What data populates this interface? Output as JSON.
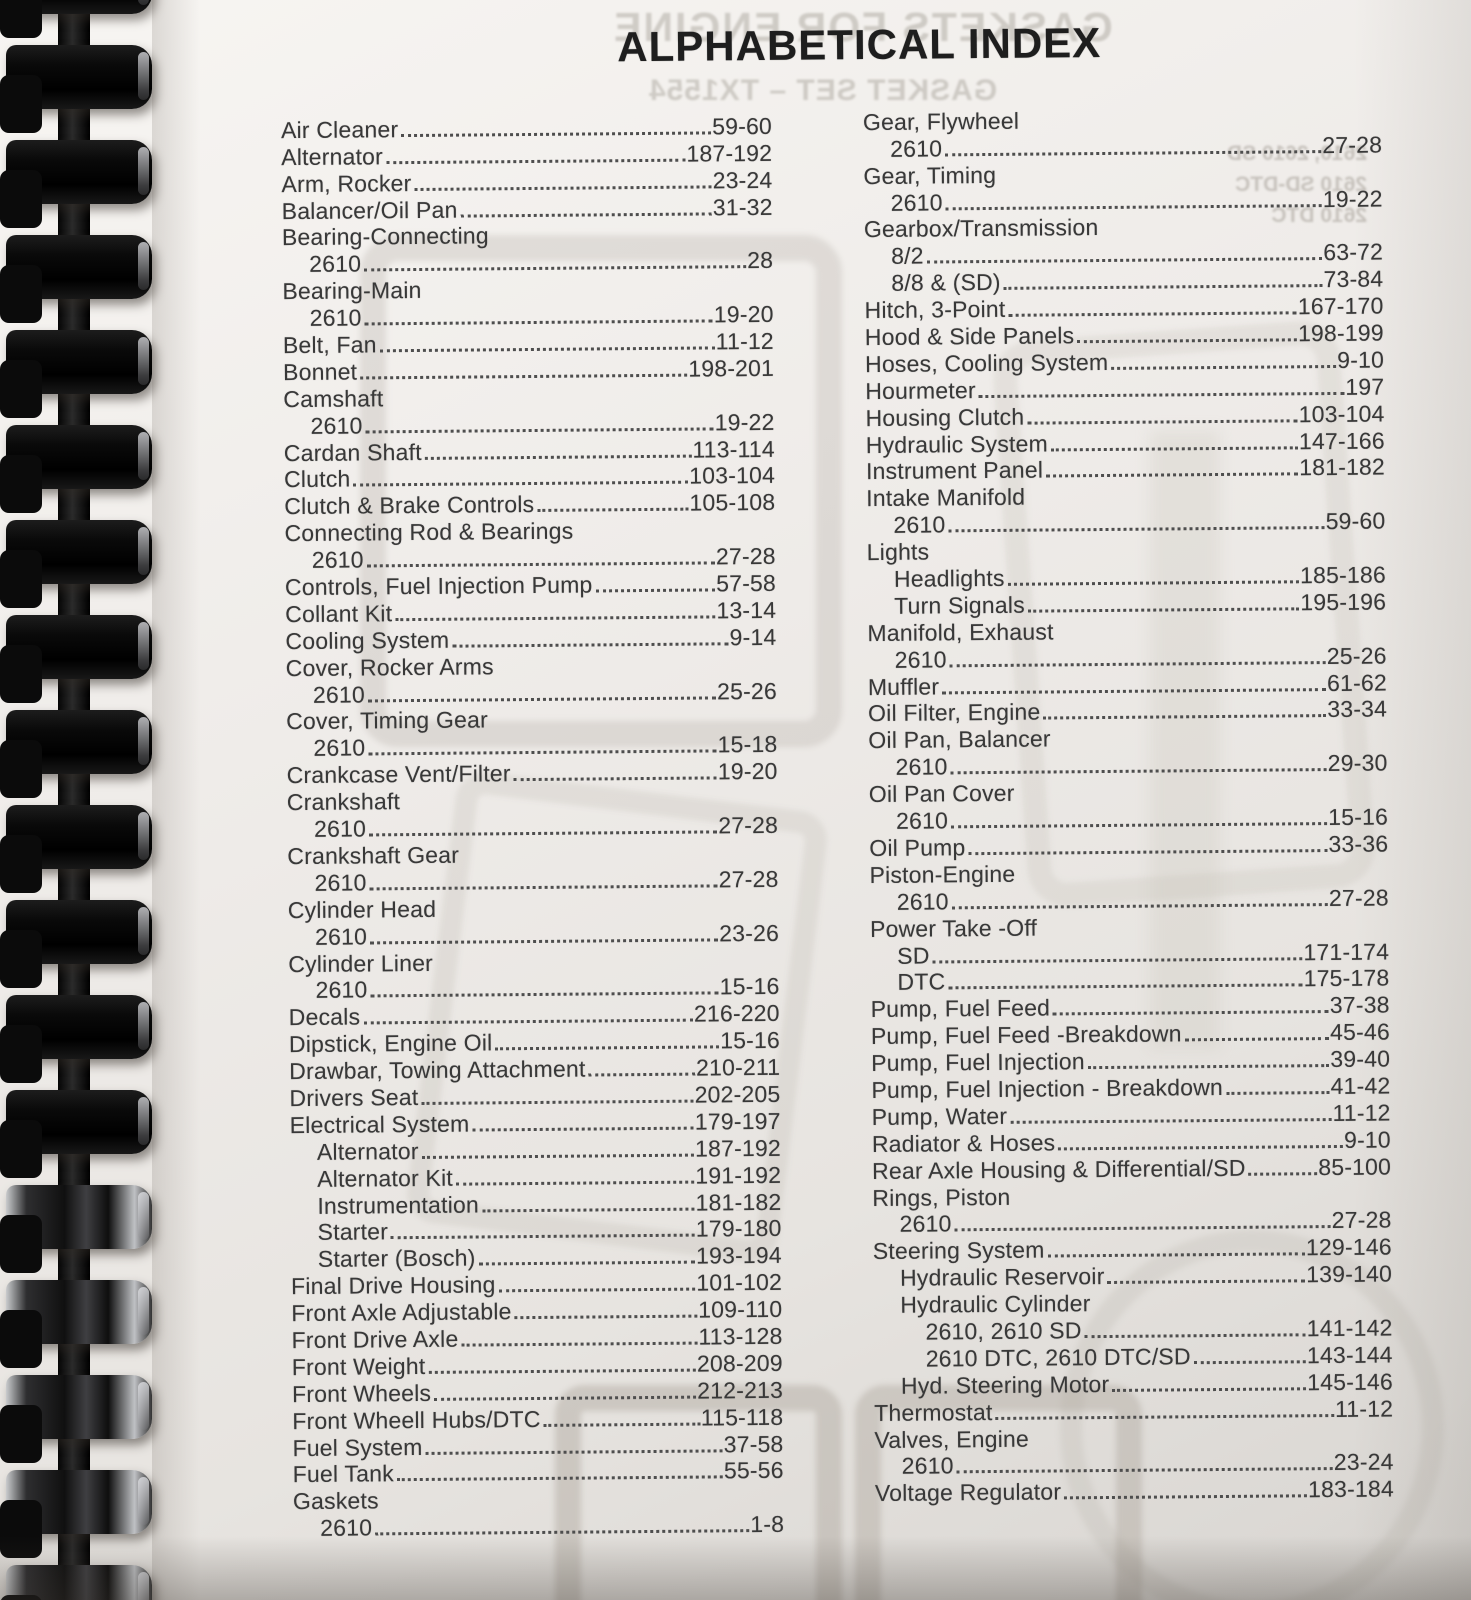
{
  "page": {
    "title": "ALPHABETICAL INDEX",
    "colors": {
      "paper": "#edeae6",
      "ink": "#383838",
      "binding": "#0d0d0d"
    },
    "showthrough": {
      "line1": "GASKETS FOR ENGINE",
      "line2": "GASKET SET – TX1554",
      "side_lines": [
        "2610, 2610 SD",
        "2610 SD-DTC",
        "2610 DTC"
      ]
    },
    "columns": {
      "left": [
        {
          "label": "Air Cleaner",
          "pages": "59-60",
          "indent": 0
        },
        {
          "label": "Alternator",
          "pages": "187-192",
          "indent": 0
        },
        {
          "label": "Arm, Rocker",
          "pages": "23-24",
          "indent": 0
        },
        {
          "label": "Balancer/Oil Pan",
          "pages": "31-32",
          "indent": 0
        },
        {
          "label": "Bearing-Connecting",
          "pages": "",
          "indent": 0
        },
        {
          "label": "2610",
          "pages": "28",
          "indent": 1
        },
        {
          "label": "Bearing-Main",
          "pages": "",
          "indent": 0
        },
        {
          "label": "2610",
          "pages": "19-20",
          "indent": 1
        },
        {
          "label": "Belt, Fan",
          "pages": "11-12",
          "indent": 0
        },
        {
          "label": "Bonnet",
          "pages": "198-201",
          "indent": 0
        },
        {
          "label": "Camshaft",
          "pages": "",
          "indent": 0
        },
        {
          "label": "2610",
          "pages": "19-22",
          "indent": 1
        },
        {
          "label": "Cardan Shaft",
          "pages": "113-114",
          "indent": 0
        },
        {
          "label": "Clutch",
          "pages": "103-104",
          "indent": 0
        },
        {
          "label": "Clutch & Brake Controls",
          "pages": "105-108",
          "indent": 0
        },
        {
          "label": "Connecting Rod & Bearings",
          "pages": "",
          "indent": 0
        },
        {
          "label": "2610",
          "pages": "27-28",
          "indent": 1
        },
        {
          "label": "Controls, Fuel Injection Pump",
          "pages": "57-58",
          "indent": 0
        },
        {
          "label": "Collant Kit",
          "pages": "13-14",
          "indent": 0
        },
        {
          "label": "Cooling System",
          "pages": "9-14",
          "indent": 0
        },
        {
          "label": "Cover, Rocker Arms",
          "pages": "",
          "indent": 0
        },
        {
          "label": "2610",
          "pages": "25-26",
          "indent": 1
        },
        {
          "label": "Cover, Timing Gear",
          "pages": "",
          "indent": 0
        },
        {
          "label": "2610",
          "pages": "15-18",
          "indent": 1
        },
        {
          "label": "Crankcase Vent/Filter",
          "pages": "19-20",
          "indent": 0
        },
        {
          "label": "Crankshaft",
          "pages": "",
          "indent": 0
        },
        {
          "label": "2610",
          "pages": "27-28",
          "indent": 1
        },
        {
          "label": "Crankshaft Gear",
          "pages": "",
          "indent": 0
        },
        {
          "label": "2610",
          "pages": "27-28",
          "indent": 1
        },
        {
          "label": "Cylinder Head",
          "pages": "",
          "indent": 0
        },
        {
          "label": "2610",
          "pages": "23-26",
          "indent": 1
        },
        {
          "label": "Cylinder Liner",
          "pages": "",
          "indent": 0
        },
        {
          "label": "2610",
          "pages": "15-16",
          "indent": 1
        },
        {
          "label": "Decals",
          "pages": "216-220",
          "indent": 0
        },
        {
          "label": "Dipstick, Engine Oil",
          "pages": "15-16",
          "indent": 0
        },
        {
          "label": "Drawbar, Towing Attachment",
          "pages": "210-211",
          "indent": 0
        },
        {
          "label": "Drivers Seat",
          "pages": "202-205",
          "indent": 0
        },
        {
          "label": "Electrical System",
          "pages": "179-197",
          "indent": 0
        },
        {
          "label": "Alternator",
          "pages": "187-192",
          "indent": 1
        },
        {
          "label": "Alternator Kit",
          "pages": "191-192",
          "indent": 1
        },
        {
          "label": "Instrumentation",
          "pages": "181-182",
          "indent": 1
        },
        {
          "label": "Starter",
          "pages": "179-180",
          "indent": 1
        },
        {
          "label": "Starter (Bosch)",
          "pages": "193-194",
          "indent": 1
        },
        {
          "label": "Final Drive Housing",
          "pages": "101-102",
          "indent": 0
        },
        {
          "label": "Front Axle Adjustable",
          "pages": "109-110",
          "indent": 0
        },
        {
          "label": "Front Drive Axle",
          "pages": "113-128",
          "indent": 0
        },
        {
          "label": "Front Weight",
          "pages": "208-209",
          "indent": 0
        },
        {
          "label": "Front Wheels",
          "pages": "212-213",
          "indent": 0
        },
        {
          "label": "Front Wheell Hubs/DTC",
          "pages": "115-118",
          "indent": 0
        },
        {
          "label": "Fuel System",
          "pages": "37-58",
          "indent": 0
        },
        {
          "label": "Fuel Tank",
          "pages": "55-56",
          "indent": 0
        },
        {
          "label": "Gaskets",
          "pages": "",
          "indent": 0
        },
        {
          "label": "2610",
          "pages": "1-8",
          "indent": 1
        }
      ],
      "right": [
        {
          "label": "Gear, Flywheel",
          "pages": "",
          "indent": 0
        },
        {
          "label": "2610",
          "pages": "27-28",
          "indent": 1
        },
        {
          "label": "Gear, Timing",
          "pages": "",
          "indent": 0
        },
        {
          "label": "2610",
          "pages": "19-22",
          "indent": 1
        },
        {
          "label": "Gearbox/Transmission",
          "pages": "",
          "indent": 0
        },
        {
          "label": "8/2",
          "pages": "63-72",
          "indent": 1
        },
        {
          "label": "8/8 & (SD)",
          "pages": "73-84",
          "indent": 1
        },
        {
          "label": "Hitch, 3-Point",
          "pages": "167-170",
          "indent": 0
        },
        {
          "label": "Hood & Side Panels",
          "pages": "198-199",
          "indent": 0
        },
        {
          "label": "Hoses, Cooling System",
          "pages": "9-10",
          "indent": 0
        },
        {
          "label": "Hourmeter",
          "pages": "197",
          "indent": 0
        },
        {
          "label": "Housing Clutch",
          "pages": "103-104",
          "indent": 0
        },
        {
          "label": "Hydraulic System",
          "pages": "147-166",
          "indent": 0
        },
        {
          "label": "Instrument Panel",
          "pages": "181-182",
          "indent": 0
        },
        {
          "label": "Intake Manifold",
          "pages": "",
          "indent": 0
        },
        {
          "label": "2610",
          "pages": "59-60",
          "indent": 1
        },
        {
          "label": "Lights",
          "pages": "",
          "indent": 0
        },
        {
          "label": "Headlights",
          "pages": "185-186",
          "indent": 1
        },
        {
          "label": "Turn Signals",
          "pages": "195-196",
          "indent": 1
        },
        {
          "label": "Manifold, Exhaust",
          "pages": "",
          "indent": 0
        },
        {
          "label": "2610",
          "pages": "25-26",
          "indent": 1
        },
        {
          "label": "Muffler",
          "pages": "61-62",
          "indent": 0
        },
        {
          "label": "Oil Filter, Engine",
          "pages": "33-34",
          "indent": 0
        },
        {
          "label": "Oil Pan, Balancer",
          "pages": "",
          "indent": 0
        },
        {
          "label": "2610",
          "pages": "29-30",
          "indent": 1
        },
        {
          "label": "Oil Pan Cover",
          "pages": "",
          "indent": 0
        },
        {
          "label": "2610",
          "pages": "15-16",
          "indent": 1
        },
        {
          "label": "Oil Pump",
          "pages": "33-36",
          "indent": 0
        },
        {
          "label": "Piston-Engine",
          "pages": "",
          "indent": 0
        },
        {
          "label": "2610",
          "pages": "27-28",
          "indent": 1
        },
        {
          "label": "Power Take -Off",
          "pages": "",
          "indent": 0
        },
        {
          "label": "SD",
          "pages": "171-174",
          "indent": 1
        },
        {
          "label": "DTC",
          "pages": "175-178",
          "indent": 1
        },
        {
          "label": "Pump, Fuel Feed",
          "pages": "37-38",
          "indent": 0
        },
        {
          "label": "Pump, Fuel Feed -Breakdown",
          "pages": "45-46",
          "indent": 0
        },
        {
          "label": "Pump, Fuel Injection",
          "pages": "39-40",
          "indent": 0
        },
        {
          "label": "Pump, Fuel Injection - Breakdown",
          "pages": "41-42",
          "indent": 0
        },
        {
          "label": "Pump, Water",
          "pages": "11-12",
          "indent": 0
        },
        {
          "label": "Radiator & Hoses",
          "pages": "9-10",
          "indent": 0
        },
        {
          "label": "Rear Axle Housing & Differential/SD",
          "pages": "85-100",
          "indent": 0
        },
        {
          "label": "Rings, Piston",
          "pages": "",
          "indent": 0
        },
        {
          "label": "2610",
          "pages": "27-28",
          "indent": 1
        },
        {
          "label": "Steering System",
          "pages": "129-146",
          "indent": 0
        },
        {
          "label": "Hydraulic Reservoir",
          "pages": "139-140",
          "indent": 1
        },
        {
          "label": "Hydraulic Cylinder",
          "pages": "",
          "indent": 1
        },
        {
          "label": "2610, 2610 SD",
          "pages": "141-142",
          "indent": 2
        },
        {
          "label": "2610 DTC, 2610 DTC/SD",
          "pages": "143-144",
          "indent": 2
        },
        {
          "label": "Hyd. Steering Motor",
          "pages": "145-146",
          "indent": 1
        },
        {
          "label": "Thermostat",
          "pages": "11-12",
          "indent": 0
        },
        {
          "label": "Valves, Engine",
          "pages": "",
          "indent": 0
        },
        {
          "label": "2610",
          "pages": "23-24",
          "indent": 1
        },
        {
          "label": "Voltage Regulator",
          "pages": "183-184",
          "indent": 0
        }
      ]
    }
  }
}
